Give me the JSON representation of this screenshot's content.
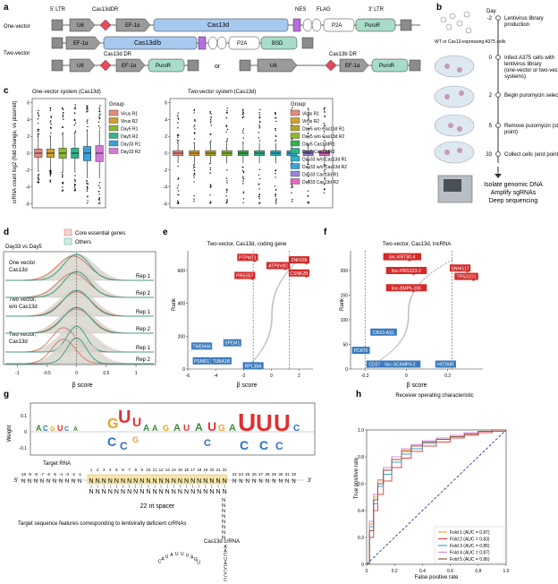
{
  "panel_letters": [
    "a",
    "b",
    "c",
    "d",
    "e",
    "f",
    "g",
    "h"
  ],
  "panel_a": {
    "one_vector_label": "One-vector",
    "two_vector_label": "Two-vector",
    "or_label": "or",
    "header": {
      "ltr5": "5′ LTR",
      "dr": "Cas13dDR",
      "nes": "NES",
      "flag": "FLAG",
      "ltr3": "3′ LTR"
    },
    "row1": {
      "u6": "U6",
      "ef1a": "EF-1α",
      "cas13d": "Cas13d",
      "p2a": "P2A",
      "puror": "PuroR"
    },
    "row2": {
      "ef1a": "EF-1α",
      "cas13db": "Cas13d/b",
      "p2a": "P2A",
      "bsd": "BSD"
    },
    "row3_labels": {
      "cas13d_dr": "Cas13d DR",
      "cas13b_dr": "Cas13b DR"
    },
    "row3a": {
      "u6": "U6",
      "ef1a": "EF-1α",
      "puror": "PuroR"
    },
    "row3b": {
      "u6": "U6",
      "ef1a": "EF-1α",
      "puror": "PuroR"
    }
  },
  "panel_b": {
    "day_header": "Day",
    "cells_label": "WT or Cas13-expressing A375 cells",
    "steps": [
      {
        "day": "-2",
        "text": "Lentivirus library production"
      },
      {
        "day": "0",
        "text": "Infect A375 cells with lentivirus library (one-vector or two-vector systems)"
      },
      {
        "day": "2",
        "text": "Begin puromycin selection"
      },
      {
        "day": "5",
        "text": "Remove puromycin (start point)"
      },
      {
        "day": "33",
        "text": "Collect cells (end point)"
      }
    ],
    "final_text": [
      "Isolate genomic DNA",
      "Amplify sgRNAs",
      "Deep sequencing"
    ]
  },
  "panel_c": {
    "ylabel": "crRNA count log2 (fold change, vs plasmid)",
    "yticks": [
      6,
      4,
      2,
      0,
      -2,
      -4,
      -6
    ],
    "one_vector": {
      "title": "One-vector system (Cas13d)",
      "legend_title": "Group",
      "groups": [
        {
          "name": "Virus R1",
          "color": "#e58a7e",
          "q1": -0.5,
          "median": 0.0,
          "q3": 0.5,
          "wlo": -2.0,
          "whi": 2.0,
          "ymin": -3.5,
          "ymax": 5.6
        },
        {
          "name": "Virus R2",
          "color": "#d2a032",
          "q1": -0.5,
          "median": 0.0,
          "q3": 0.5,
          "wlo": -2.0,
          "whi": 2.0,
          "ymin": -3.5,
          "ymax": 5.6
        },
        {
          "name": "Day5 R1",
          "color": "#8bb834",
          "q1": -0.6,
          "median": 0.0,
          "q3": 0.6,
          "wlo": -2.3,
          "whi": 2.2,
          "ymin": -4.5,
          "ymax": 5.8
        },
        {
          "name": "Day5 R2",
          "color": "#2fb58a",
          "q1": -0.6,
          "median": 0.0,
          "q3": 0.6,
          "wlo": -2.3,
          "whi": 2.2,
          "ymin": -4.5,
          "ymax": 5.8
        },
        {
          "name": "Day33 R1",
          "color": "#3aa2d8",
          "q1": -0.9,
          "median": 0.0,
          "q3": 0.8,
          "wlo": -3.0,
          "whi": 2.7,
          "ymin": -6.0,
          "ymax": 5.8
        },
        {
          "name": "Day33 R2",
          "color": "#d37ad6",
          "q1": -1.0,
          "median": 0.0,
          "q3": 0.9,
          "wlo": -3.0,
          "whi": 2.8,
          "ymin": -6.0,
          "ymax": 5.8
        }
      ]
    },
    "two_vector": {
      "title": "Two-vector system (Cas13d)",
      "legend_title": "Group",
      "groups": [
        {
          "name": "Virus R1",
          "color": "#e58a7e",
          "q1": -0.3,
          "median": 0.0,
          "q3": 0.3,
          "wlo": -1.2,
          "whi": 1.2,
          "ymin": -6.0,
          "ymax": 5.4
        },
        {
          "name": "Virus R2",
          "color": "#d2a032",
          "q1": -0.3,
          "median": 0.0,
          "q3": 0.3,
          "wlo": -1.2,
          "whi": 1.2,
          "ymin": -6.0,
          "ymax": 5.4
        },
        {
          "name": "Day5 w/o Cas13d R1",
          "color": "#b3a52c",
          "q1": -0.3,
          "median": 0.0,
          "q3": 0.3,
          "wlo": -1.2,
          "whi": 1.2,
          "ymin": -6.0,
          "ymax": 5.4
        },
        {
          "name": "Day5 w/o Cas13d R2",
          "color": "#8bb834",
          "q1": -0.3,
          "median": 0.0,
          "q3": 0.3,
          "wlo": -1.2,
          "whi": 1.2,
          "ymin": -6.0,
          "ymax": 5.4
        },
        {
          "name": "Day5 Cas13dR1",
          "color": "#34b24e",
          "q1": -0.3,
          "median": 0.0,
          "q3": 0.3,
          "wlo": -1.2,
          "whi": 1.2,
          "ymin": -6.0,
          "ymax": 5.4
        },
        {
          "name": "Day5 Cas13dR2",
          "color": "#2fb58a",
          "q1": -0.3,
          "median": 0.0,
          "q3": 0.3,
          "wlo": -1.2,
          "whi": 1.2,
          "ymin": -6.0,
          "ymax": 5.4
        },
        {
          "name": "Day33 w/o Cas13d R1",
          "color": "#2bb3c2",
          "q1": -0.3,
          "median": 0.0,
          "q3": 0.3,
          "wlo": -1.2,
          "whi": 1.2,
          "ymin": -6.0,
          "ymax": 5.4
        },
        {
          "name": "Day33 w/o Cas13d R2",
          "color": "#3aa2d8",
          "q1": -0.3,
          "median": 0.0,
          "q3": 0.3,
          "wlo": -1.2,
          "whi": 1.2,
          "ymin": -6.0,
          "ymax": 5.4
        },
        {
          "name": "Day33 Cas13d R1",
          "color": "#9b84d8",
          "q1": -0.3,
          "median": 0.0,
          "q3": 0.3,
          "wlo": -1.2,
          "whi": 1.2,
          "ymin": -6.0,
          "ymax": 5.4
        },
        {
          "name": "Day33 Cas13d R2",
          "color": "#e26ac0",
          "q1": -0.3,
          "median": 0.0,
          "q3": 0.3,
          "wlo": -1.2,
          "whi": 1.2,
          "ymin": -6.0,
          "ymax": 5.4
        }
      ]
    }
  },
  "chart_data": [
    {
      "type": "ridgeline",
      "title": "Day33 vs Day5",
      "legend": [
        {
          "name": "Core essential genes",
          "color": "#e89a88"
        },
        {
          "name": "Others",
          "color": "#7fc8b4"
        }
      ],
      "xlabel": "β score",
      "xticks": [
        -1,
        -0.5,
        0,
        0.5,
        1
      ],
      "xlim": [
        -1.2,
        1.3
      ],
      "group_labels": [
        "One vector Cas13d",
        "Two vector, w/o Cas13d",
        "Two vector, Cas13d"
      ],
      "rows": [
        {
          "label": "Rep 1",
          "core_mean": -0.06,
          "core_sd": 0.26,
          "others_mean": 0.0,
          "others_sd": 0.22
        },
        {
          "label": "Rep 2",
          "core_mean": -0.06,
          "core_sd": 0.26,
          "others_mean": 0.0,
          "others_sd": 0.22
        },
        {
          "label": "Rep 1",
          "core_mean": 0.0,
          "core_sd": 0.25,
          "others_mean": 0.0,
          "others_sd": 0.23
        },
        {
          "label": "Rep 2",
          "core_mean": 0.0,
          "core_sd": 0.25,
          "others_mean": 0.0,
          "others_sd": 0.23
        },
        {
          "label": "Rep 1",
          "core_mean": -0.22,
          "core_sd": 0.2,
          "others_mean": 0.0,
          "others_sd": 0.16
        },
        {
          "label": "Rep 2",
          "core_mean": -0.22,
          "core_sd": 0.2,
          "others_mean": 0.0,
          "others_sd": 0.16
        }
      ]
    },
    {
      "type": "scatter",
      "title": "Two-vector, Cas13d, coding gene",
      "xlabel": "β score",
      "ylabel": "Rank",
      "xlim": [
        -6,
        3
      ],
      "ylim": [
        0,
        720
      ],
      "xticks": [
        -6,
        -4,
        -2,
        0,
        2
      ],
      "yticks": [
        0,
        200,
        400,
        600
      ],
      "thresholds": [
        -1.3,
        1.3
      ],
      "labels_pos": [
        {
          "text": "PTPMT1",
          "x": -1.7,
          "y": 680
        },
        {
          "text": "ATP6V0C",
          "x": 0.5,
          "y": 630
        },
        {
          "text": "ZNF639",
          "x": 2.0,
          "y": 665
        },
        {
          "text": "PRSS57",
          "x": -1.9,
          "y": 570
        },
        {
          "text": "CSNK2B",
          "x": 2.0,
          "y": 585
        }
      ],
      "labels_neg": [
        {
          "text": "TMEM44",
          "x": -5.0,
          "y": 140
        },
        {
          "text": "SPEM1",
          "x": -2.8,
          "y": 160
        },
        {
          "text": "PSMD1",
          "x": -5.0,
          "y": 50
        },
        {
          "text": "TUBA1B",
          "x": -3.6,
          "y": 50
        },
        {
          "text": "RPL38A",
          "x": -1.3,
          "y": 20
        }
      ]
    },
    {
      "type": "scatter",
      "title": "Two-vector, Cas13d, lncRNA",
      "xlabel": "β score",
      "ylabel": "Rank",
      "xlim": [
        -0.27,
        0.37
      ],
      "ylim": [
        0,
        240
      ],
      "xticks": [
        -0.2,
        0,
        0.2
      ],
      "yticks": [
        0,
        50,
        100,
        150,
        200
      ],
      "thresholds": [
        -0.2,
        0.22
      ],
      "labels_pos": [
        {
          "text": "linc-KRT80-4",
          "x": -0.02,
          "y": 228
        },
        {
          "text": "SNHG17",
          "x": 0.26,
          "y": 205
        },
        {
          "text": "linc-PRSS23-2",
          "x": 0.0,
          "y": 200
        },
        {
          "text": "TPS31O1",
          "x": 0.29,
          "y": 188
        },
        {
          "text": "linc-BMP6-106",
          "x": 0.0,
          "y": 165
        }
      ],
      "labels_neg": [
        {
          "text": "CBX3-AS1",
          "x": -0.11,
          "y": 75
        },
        {
          "text": "PCAT6",
          "x": -0.22,
          "y": 38
        },
        {
          "text": "CD27-AS1",
          "x": -0.13,
          "y": 10
        },
        {
          "text": "linc-SCAMP4-2",
          "x": -0.03,
          "y": 10
        },
        {
          "text": "HOTAIR",
          "x": 0.19,
          "y": 10
        }
      ]
    },
    {
      "type": "line",
      "title": "Receiver operating characteristic",
      "xlabel": "False positive rate",
      "ylabel": "True positive rate",
      "xlim": [
        0,
        1
      ],
      "ylim": [
        0,
        1
      ],
      "xticks": [
        0,
        0.2,
        0.4,
        0.6,
        0.8,
        1.0
      ],
      "yticks": [
        0,
        0.2,
        0.4,
        0.6,
        0.8,
        1.0
      ],
      "series": [
        {
          "name": "Fold 1 (AUC = 0.87)",
          "color": "#f2a13c",
          "x": [
            0,
            0.02,
            0.05,
            0.08,
            0.12,
            0.18,
            0.25,
            0.32,
            0.4,
            0.5,
            0.6,
            0.7,
            0.8,
            0.9,
            1.0
          ],
          "y": [
            0,
            0.3,
            0.5,
            0.62,
            0.72,
            0.8,
            0.85,
            0.88,
            0.91,
            0.94,
            0.96,
            0.98,
            0.99,
            1.0,
            1.0
          ]
        },
        {
          "name": "Fold 2 (AUC = 0.83)",
          "color": "#e24a4a",
          "x": [
            0,
            0.02,
            0.05,
            0.08,
            0.12,
            0.18,
            0.25,
            0.32,
            0.4,
            0.5,
            0.6,
            0.7,
            0.8,
            0.9,
            1.0
          ],
          "y": [
            0,
            0.2,
            0.4,
            0.52,
            0.62,
            0.72,
            0.79,
            0.84,
            0.88,
            0.91,
            0.94,
            0.96,
            0.98,
            0.99,
            1.0
          ]
        },
        {
          "name": "Fold 3 (AUC = 0.85)",
          "color": "#3aa6c8",
          "x": [
            0,
            0.02,
            0.05,
            0.08,
            0.12,
            0.18,
            0.25,
            0.32,
            0.4,
            0.5,
            0.6,
            0.7,
            0.8,
            0.9,
            1.0
          ],
          "y": [
            0,
            0.28,
            0.45,
            0.58,
            0.67,
            0.76,
            0.82,
            0.86,
            0.9,
            0.93,
            0.95,
            0.97,
            0.99,
            1.0,
            1.0
          ]
        },
        {
          "name": "Fold 4 (AUC = 0.87)",
          "color": "#d98ad6",
          "x": [
            0,
            0.02,
            0.05,
            0.08,
            0.12,
            0.18,
            0.25,
            0.32,
            0.4,
            0.5,
            0.6,
            0.7,
            0.8,
            0.9,
            1.0
          ],
          "y": [
            0,
            0.32,
            0.52,
            0.63,
            0.72,
            0.8,
            0.86,
            0.89,
            0.92,
            0.94,
            0.96,
            0.98,
            0.99,
            1.0,
            1.0
          ]
        },
        {
          "name": "Fold 5 (AUC = 0.86)",
          "color": "#8a5a44",
          "x": [
            0,
            0.02,
            0.05,
            0.08,
            0.12,
            0.18,
            0.25,
            0.32,
            0.4,
            0.5,
            0.6,
            0.7,
            0.8,
            0.9,
            1.0
          ],
          "y": [
            0,
            0.25,
            0.48,
            0.6,
            0.7,
            0.78,
            0.84,
            0.88,
            0.91,
            0.93,
            0.95,
            0.97,
            0.99,
            1.0,
            1.0
          ]
        }
      ]
    }
  ],
  "panel_g": {
    "ylabel": "Weight",
    "yticks": [
      "0.1",
      "0",
      "-0.1"
    ],
    "target_rna_label": "Target RNA",
    "five_prime": "5′",
    "three_prime": "3′",
    "spacer_label": "22 nt spacer",
    "description": "Target sequence features corresponding to lentivirally deficient crRNAs",
    "crrna_label": "Cas13d crRNA",
    "n_char": "N",
    "positions_left": [
      "-10",
      "-9",
      "-8",
      "-7",
      "-6",
      "-5",
      "-4",
      "-3",
      "-2",
      "-1"
    ],
    "positions_spacer": [
      "1",
      "2",
      "3",
      "4",
      "5",
      "6",
      "7",
      "8",
      "9",
      "10",
      "11",
      "12",
      "13",
      "14",
      "15",
      "16",
      "17",
      "18",
      "19",
      "20",
      "21",
      "22"
    ],
    "positions_right": [
      "23",
      "24",
      "25",
      "26",
      "27",
      "28",
      "29",
      "30",
      "31",
      "32"
    ],
    "dr_stem": [
      "A",
      "A",
      "C",
      "U",
      "A",
      "C",
      "C",
      "C",
      "C"
    ],
    "dr_loop": [
      "C",
      "A",
      "U",
      "A",
      "U",
      "U",
      "U",
      "A",
      "G",
      "U"
    ]
  }
}
